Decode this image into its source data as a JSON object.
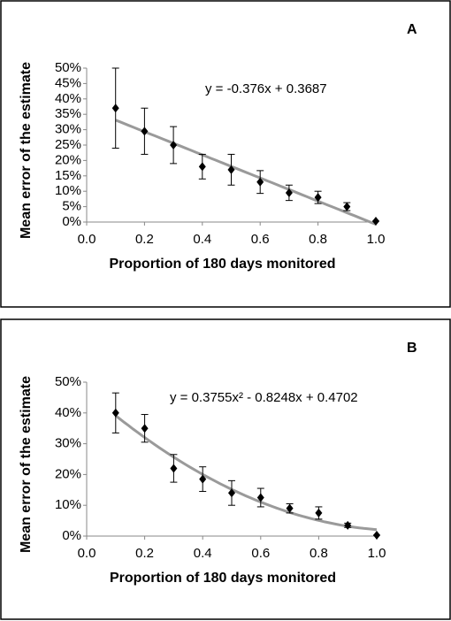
{
  "chart_data": [
    {
      "type": "scatter",
      "panel_label": "A",
      "xlabel": "Proportion of 180 days monitored",
      "ylabel": "Mean error of the estimate",
      "x": [
        0.1,
        0.2,
        0.3,
        0.4,
        0.5,
        0.6,
        0.7,
        0.8,
        0.9,
        1.0
      ],
      "values": [
        37,
        29.5,
        25,
        18,
        17,
        13,
        9.5,
        8,
        5,
        0.3
      ],
      "errors": [
        13,
        7.5,
        6,
        4,
        5,
        3.7,
        2.5,
        2,
        1.3,
        0
      ],
      "color": "#000000",
      "trendline": {
        "equation": "y = -0.376x + 0.3687",
        "color": "#9a9a9a"
      },
      "xlim": [
        0,
        1
      ],
      "xticks": [
        {
          "value": 0,
          "label": "0.0"
        },
        0.2,
        0.4,
        0.6,
        0.8,
        {
          "value": 1,
          "label": "1.0"
        }
      ],
      "ylim": [
        0,
        50
      ],
      "yticks": [
        {
          "value": 0,
          "label": "0%"
        },
        {
          "value": 5,
          "label": "5%"
        },
        {
          "value": 10,
          "label": "10%"
        },
        {
          "value": 15,
          "label": "15%"
        },
        {
          "value": 20,
          "label": "20%"
        },
        {
          "value": 25,
          "label": "25%"
        },
        {
          "value": 30,
          "label": "30%"
        },
        {
          "value": 35,
          "label": "35%"
        },
        {
          "value": 40,
          "label": "40%"
        },
        {
          "value": 45,
          "label": "45%"
        },
        {
          "value": 50,
          "label": "50%"
        }
      ]
    },
    {
      "type": "scatter",
      "panel_label": "B",
      "xlabel": "Proportion of 180 days monitored",
      "ylabel": "Mean error of the estimate",
      "x": [
        0.1,
        0.2,
        0.3,
        0.4,
        0.5,
        0.6,
        0.7,
        0.8,
        0.9,
        1.0
      ],
      "values": [
        40,
        35,
        22,
        18.5,
        14,
        12.5,
        9,
        7.5,
        3.5,
        0.3
      ],
      "errors": [
        6.5,
        4.5,
        4.5,
        4,
        4,
        3,
        1.5,
        2,
        0.7,
        0
      ],
      "color": "#000000",
      "trendline": {
        "equation": "y = 0.3755x² - 0.8248x + 0.4702",
        "color": "#9a9a9a"
      },
      "xlim": [
        0,
        1
      ],
      "xticks": [
        {
          "value": 0,
          "label": "0.0"
        },
        0.2,
        0.4,
        0.6,
        0.8,
        {
          "value": 1,
          "label": "1.0"
        }
      ],
      "ylim": [
        0,
        50
      ],
      "yticks": [
        {
          "value": 0,
          "label": "0%"
        },
        {
          "value": 10,
          "label": "10%"
        },
        {
          "value": 20,
          "label": "20%"
        },
        {
          "value": 30,
          "label": "30%"
        },
        {
          "value": 40,
          "label": "40%"
        },
        {
          "value": 50,
          "label": "50%"
        }
      ]
    }
  ]
}
